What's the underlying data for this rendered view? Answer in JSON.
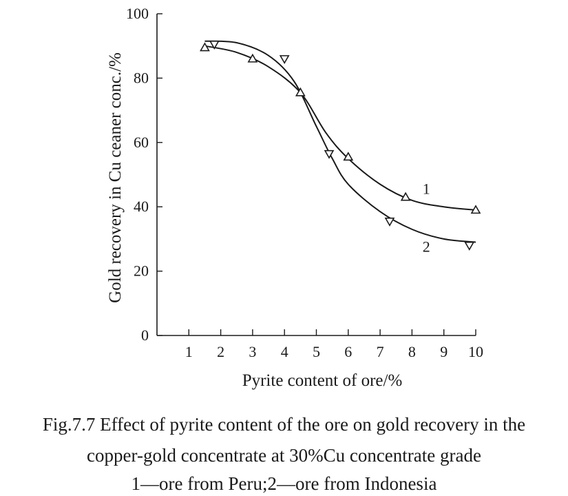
{
  "chart_data": {
    "type": "line",
    "xlabel": "Pyrite content of ore/%",
    "ylabel": "Gold recovery in Cu ceaner conc./%",
    "xlim": [
      0,
      10
    ],
    "ylim": [
      0,
      100
    ],
    "x_ticks": [
      "1",
      "2",
      "3",
      "4",
      "5",
      "6",
      "7",
      "8",
      "9",
      "10"
    ],
    "y_ticks": [
      "0",
      "20",
      "40",
      "60",
      "80",
      "100"
    ],
    "series": [
      {
        "name": "1",
        "marker": "triangle-up",
        "points": [
          [
            1.5,
            89.5
          ],
          [
            3.0,
            86.0
          ],
          [
            4.5,
            75.5
          ],
          [
            6.0,
            55.5
          ],
          [
            7.8,
            43.0
          ],
          [
            10.0,
            39.0
          ]
        ],
        "curve": [
          [
            1.5,
            90.0
          ],
          [
            2.5,
            88.0
          ],
          [
            3.5,
            83.5
          ],
          [
            4.5,
            75.5
          ],
          [
            5.3,
            63.0
          ],
          [
            6.0,
            55.0
          ],
          [
            7.0,
            47.0
          ],
          [
            8.0,
            42.0
          ],
          [
            9.0,
            40.0
          ],
          [
            10.0,
            39.0
          ]
        ]
      },
      {
        "name": "2",
        "marker": "triangle-down",
        "points": [
          [
            1.8,
            90.5
          ],
          [
            4.0,
            86.0
          ],
          [
            5.4,
            56.5
          ],
          [
            7.3,
            35.5
          ],
          [
            9.8,
            28.0
          ]
        ],
        "curve": [
          [
            1.5,
            91.5
          ],
          [
            2.5,
            91.0
          ],
          [
            3.5,
            87.0
          ],
          [
            4.3,
            79.0
          ],
          [
            5.0,
            65.0
          ],
          [
            5.5,
            55.0
          ],
          [
            6.0,
            47.0
          ],
          [
            7.0,
            38.5
          ],
          [
            8.0,
            33.0
          ],
          [
            9.0,
            30.0
          ],
          [
            10.0,
            29.0
          ]
        ]
      }
    ]
  },
  "caption": {
    "line1": "Fig.7.7 Effect of pyrite content of the ore on gold recovery in the",
    "line2": "copper-gold concentrate at 30%Cu concentrate grade",
    "line3": "1—ore from Peru;2—ore from Indonesia"
  }
}
